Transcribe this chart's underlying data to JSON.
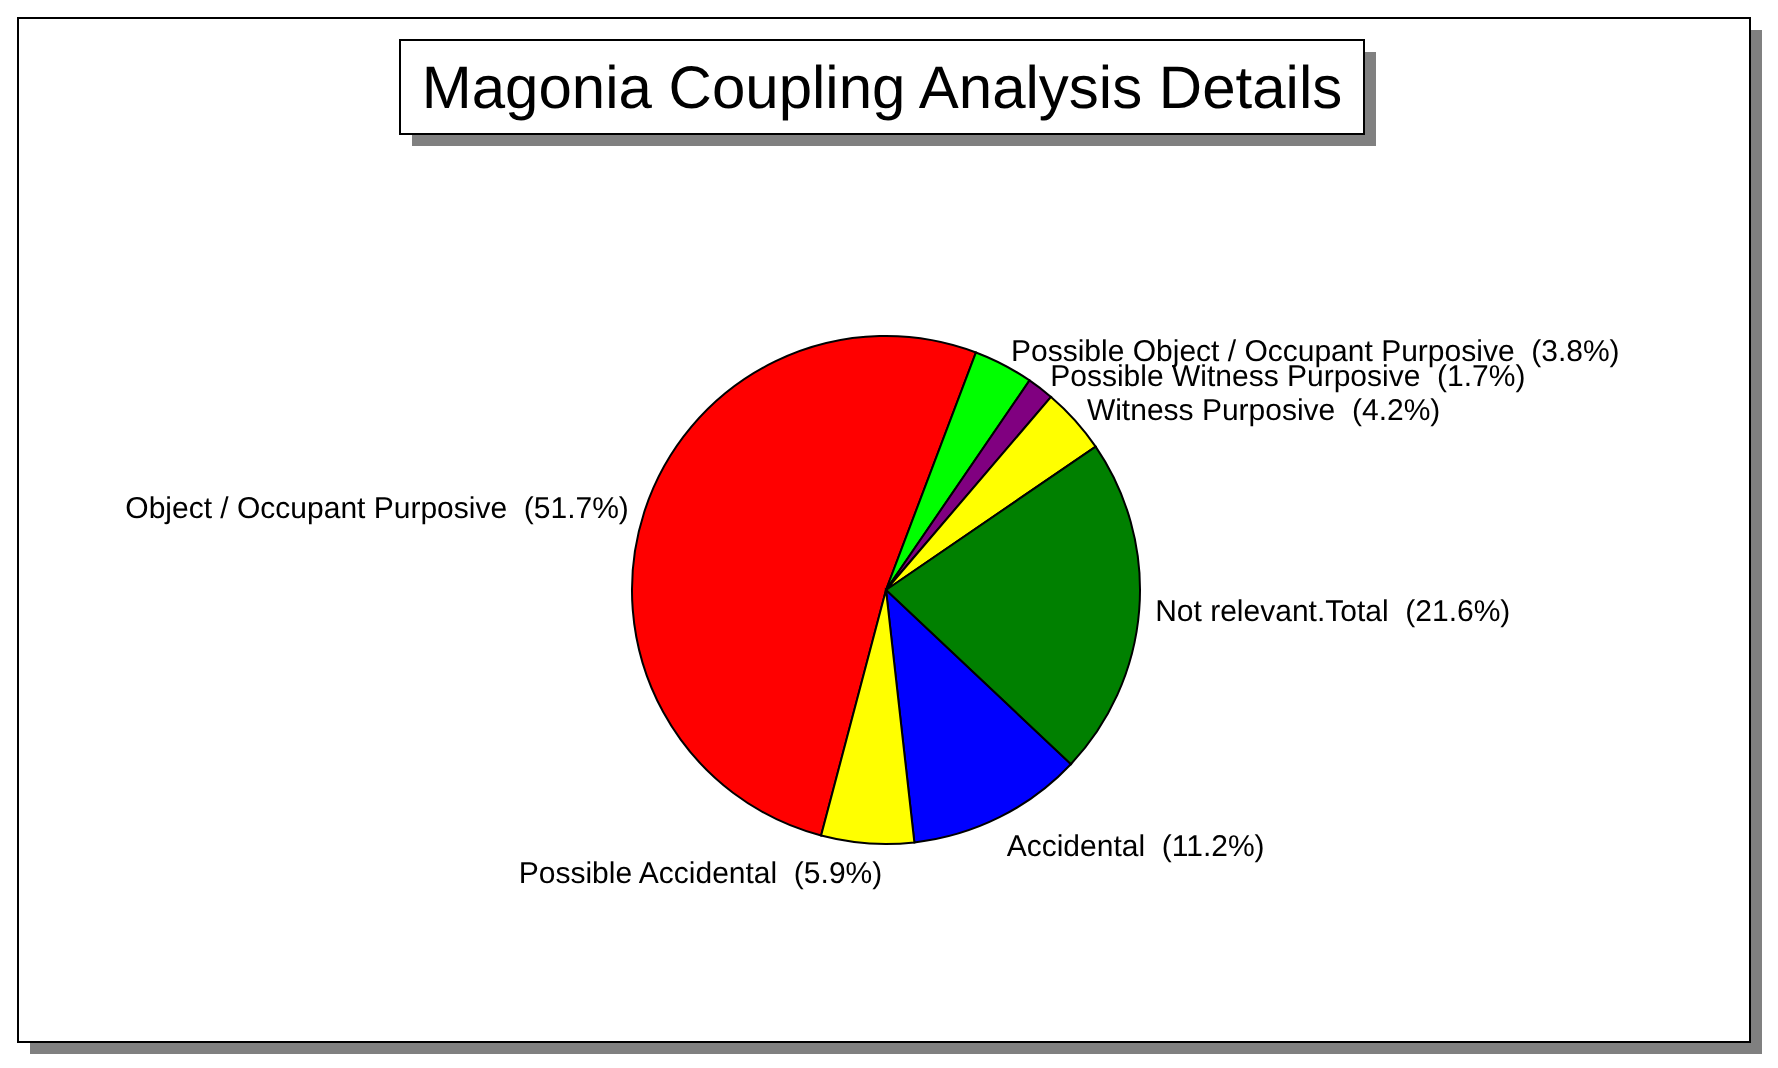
{
  "chart_data": {
    "type": "pie",
    "title": "Magonia Coupling Analysis Details",
    "categories": [
      "Object / Occupant Purposive",
      "Possible Object / Occupant Purposive",
      "Possible Witness Purposive",
      "Witness Purposive",
      "Not relevant.Total",
      "Accidental",
      "Possible Accidental"
    ],
    "values": [
      51.7,
      3.8,
      1.7,
      4.2,
      21.6,
      11.2,
      5.9
    ],
    "colors": [
      "#ff0000",
      "#00ff00",
      "#800080",
      "#ffff00",
      "#008000",
      "#0000ff",
      "#ffff00"
    ],
    "value_labels": [
      "(51.7%)",
      "(3.8%)",
      "(1.7%)",
      "(4.2%)",
      "(21.6%)",
      "(11.2%)",
      "(5.9%)"
    ]
  }
}
